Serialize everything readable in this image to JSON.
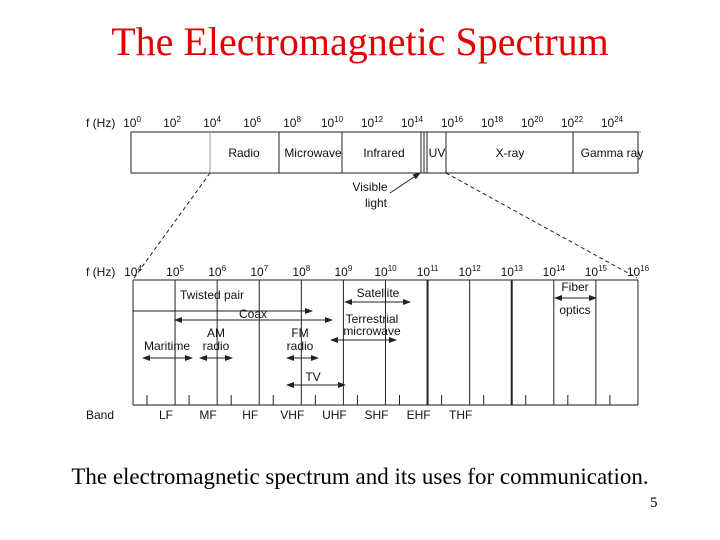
{
  "title": "The Electromagnetic Spectrum",
  "caption": "The electromagnetic spectrum and its uses for communication.",
  "page_number": "5",
  "colors": {
    "title": "#e00000",
    "lines": "#222222"
  },
  "top_scale": {
    "axis_label": "f (Hz)",
    "exponents": [
      "0",
      "2",
      "4",
      "6",
      "8",
      "10",
      "12",
      "14",
      "16",
      "18",
      "20",
      "22",
      "24"
    ],
    "regions": [
      "Radio",
      "Microwave",
      "Infrared",
      "UV",
      "X-ray",
      "Gamma ray"
    ],
    "visible_label": [
      "Visible",
      "light"
    ]
  },
  "bottom_scale": {
    "axis_label": "f (Hz)",
    "exponents": [
      "4",
      "5",
      "6",
      "7",
      "8",
      "9",
      "10",
      "11",
      "12",
      "13",
      "14",
      "15",
      "16"
    ],
    "uses": {
      "twisted_pair": "Twisted pair",
      "coax": "Coax",
      "satellite": "Satellite",
      "terrestrial": [
        "Terrestrial",
        "microwave"
      ],
      "fiber": [
        "Fiber",
        "optics"
      ],
      "maritime": "Maritime",
      "am": [
        "AM",
        "radio"
      ],
      "fm": [
        "FM",
        "radio"
      ],
      "tv": "TV"
    },
    "band_label": "Band",
    "bands": [
      "LF",
      "MF",
      "HF",
      "VHF",
      "UHF",
      "SHF",
      "EHF",
      "THF"
    ]
  }
}
